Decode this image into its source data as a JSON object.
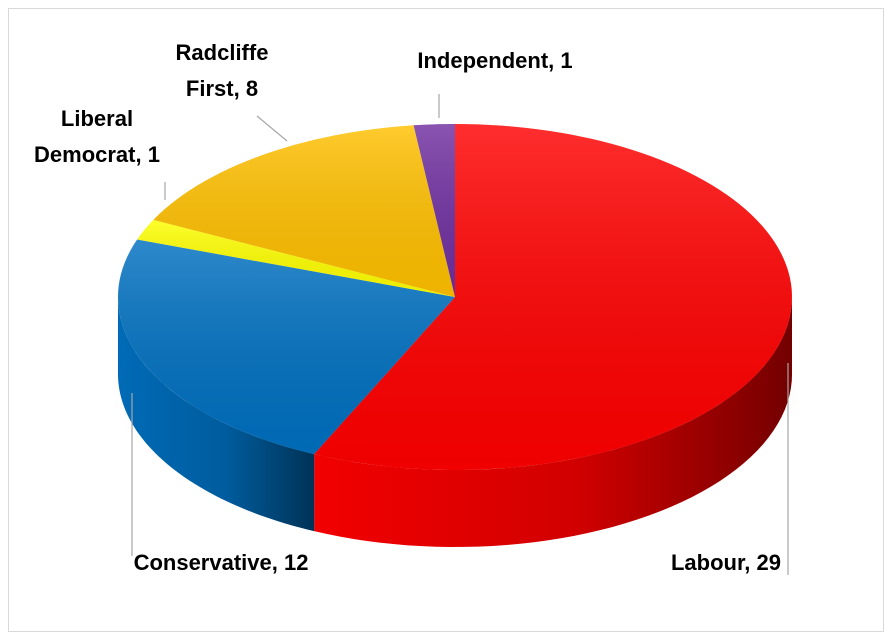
{
  "chart_data": {
    "type": "pie",
    "title": "",
    "categories": [
      "Labour",
      "Conservative",
      "Liberal Democrat",
      "Radcliffe First",
      "Independent"
    ],
    "values": [
      29,
      12,
      1,
      8,
      1
    ],
    "colors": [
      "#ff0000",
      "#0070c0",
      "#ffff00",
      "#ffc000",
      "#7030a0"
    ],
    "style": "3d",
    "legend": "none",
    "labels": [
      {
        "lines": [
          "Labour, 29"
        ]
      },
      {
        "lines": [
          "Conservative, 12"
        ]
      },
      {
        "lines": [
          "Liberal",
          "Democrat, 1"
        ]
      },
      {
        "lines": [
          "Radcliffe",
          "First, 8"
        ]
      },
      {
        "lines": [
          "Independent, 1"
        ]
      }
    ]
  }
}
